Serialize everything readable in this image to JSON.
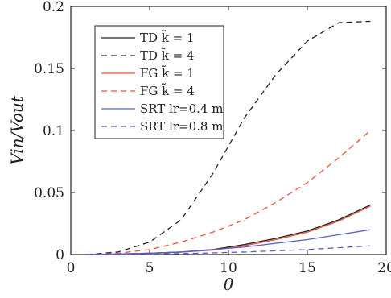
{
  "chart_data": {
    "type": "line",
    "xlabel": "θ",
    "ylabel": "Vin/Vout",
    "xlim": [
      0,
      20
    ],
    "ylim": [
      0,
      0.2
    ],
    "xticks": [
      0,
      5,
      10,
      15,
      20
    ],
    "yticks": [
      0,
      0.05,
      0.1,
      0.15,
      0.2
    ],
    "xtick_labels": [
      "0",
      "5",
      "10",
      "15",
      "20"
    ],
    "ytick_labels": [
      "0",
      "0.05",
      "0.1",
      "0.15",
      "0.2"
    ],
    "grid": false,
    "legend_position": "top-left",
    "x": [
      1,
      3,
      5,
      7,
      9,
      11,
      13,
      15,
      17,
      19
    ],
    "series": [
      {
        "name": "TD k̃ = 1",
        "color": "#222222",
        "dash": "solid",
        "values": [
          0,
          0.0005,
          0.001,
          0.002,
          0.004,
          0.008,
          0.013,
          0.019,
          0.028,
          0.04
        ]
      },
      {
        "name": "TD k̃ = 4",
        "color": "#222222",
        "dash": "dashed",
        "values": [
          0,
          0.002,
          0.01,
          0.028,
          0.065,
          0.11,
          0.145,
          0.172,
          0.187,
          0.188
        ]
      },
      {
        "name": "FG k̃ = 1",
        "color": "#e8553f",
        "dash": "solid",
        "values": [
          0,
          0.0004,
          0.001,
          0.002,
          0.0035,
          0.007,
          0.012,
          0.018,
          0.027,
          0.039
        ]
      },
      {
        "name": "FG k̃ = 4",
        "color": "#e8553f",
        "dash": "dashed",
        "values": [
          0,
          0.001,
          0.004,
          0.01,
          0.018,
          0.028,
          0.042,
          0.058,
          0.078,
          0.1
        ]
      },
      {
        "name": "SRT lr=0.4 m",
        "color": "#5561c4",
        "dash": "solid",
        "values": [
          0,
          0.0003,
          0.001,
          0.002,
          0.004,
          0.006,
          0.009,
          0.012,
          0.016,
          0.02
        ]
      },
      {
        "name": "SRT lr=0.8 m",
        "color": "#5561c4",
        "dash": "dashed",
        "values": [
          0,
          0.0002,
          0.0004,
          0.0008,
          0.0013,
          0.002,
          0.003,
          0.004,
          0.0055,
          0.007
        ]
      }
    ]
  }
}
